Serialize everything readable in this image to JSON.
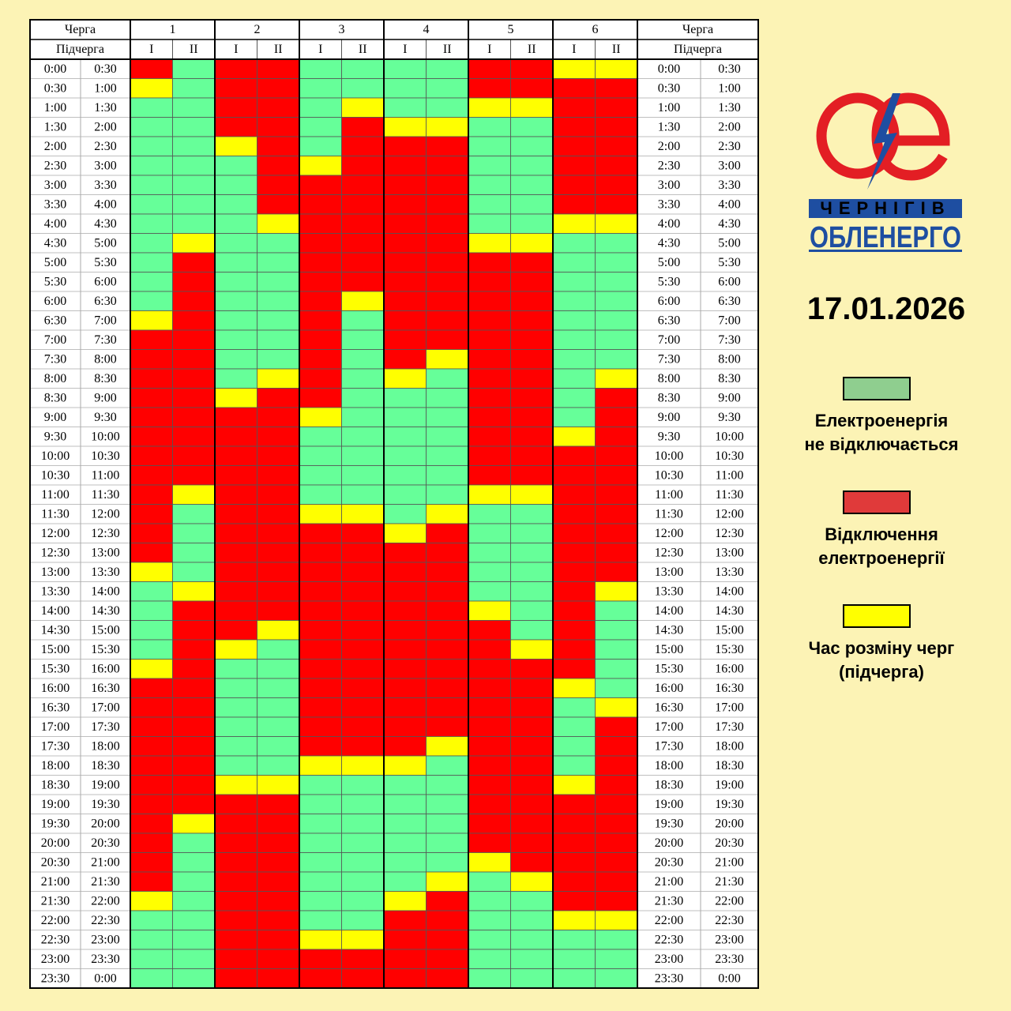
{
  "header": {
    "queue_label": "Черга",
    "subqueue_label": "Підчерга",
    "queues": [
      "1",
      "2",
      "3",
      "4",
      "5",
      "6"
    ],
    "subqueues": [
      "I",
      "II"
    ]
  },
  "logo": {
    "line1": "ЧЕРНІГІВ",
    "line2": "ОБЛЕНЕРГО"
  },
  "date": "17.01.2026",
  "legend": [
    {
      "color": "#8fce8f",
      "label": [
        "Електроенергія",
        "не відключається"
      ]
    },
    {
      "color": "#e03a3a",
      "label": [
        "Відключення",
        "електроенергії"
      ]
    },
    {
      "color": "#ffff00",
      "label": [
        "Час розміну черг",
        "(підчерга)"
      ]
    }
  ],
  "rows": [
    {
      "from": "0:00",
      "to": "0:30",
      "cells": [
        "#f00",
        "#6f9",
        "#f00",
        "#f00",
        "#6f9",
        "#6f9",
        "#6f9",
        "#6f9",
        "#f00",
        "#f00",
        "#ff0",
        "#ff0"
      ]
    },
    {
      "from": "0:30",
      "to": "1:00",
      "cells": [
        "#ff0",
        "#6f9",
        "#f00",
        "#f00",
        "#6f9",
        "#6f9",
        "#6f9",
        "#6f9",
        "#f00",
        "#f00",
        "#f00",
        "#f00"
      ]
    },
    {
      "from": "1:00",
      "to": "1:30",
      "cells": [
        "#6f9",
        "#6f9",
        "#f00",
        "#f00",
        "#6f9",
        "#ff0",
        "#6f9",
        "#6f9",
        "#ff0",
        "#ff0",
        "#f00",
        "#f00"
      ]
    },
    {
      "from": "1:30",
      "to": "2:00",
      "cells": [
        "#6f9",
        "#6f9",
        "#f00",
        "#f00",
        "#6f9",
        "#f00",
        "#ff0",
        "#ff0",
        "#6f9",
        "#6f9",
        "#f00",
        "#f00"
      ]
    },
    {
      "from": "2:00",
      "to": "2:30",
      "cells": [
        "#6f9",
        "#6f9",
        "#ff0",
        "#f00",
        "#6f9",
        "#f00",
        "#f00",
        "#f00",
        "#6f9",
        "#6f9",
        "#f00",
        "#f00"
      ]
    },
    {
      "from": "2:30",
      "to": "3:00",
      "cells": [
        "#6f9",
        "#6f9",
        "#6f9",
        "#f00",
        "#ff0",
        "#f00",
        "#f00",
        "#f00",
        "#6f9",
        "#6f9",
        "#f00",
        "#f00"
      ]
    },
    {
      "from": "3:00",
      "to": "3:30",
      "cells": [
        "#6f9",
        "#6f9",
        "#6f9",
        "#f00",
        "#f00",
        "#f00",
        "#f00",
        "#f00",
        "#6f9",
        "#6f9",
        "#f00",
        "#f00"
      ]
    },
    {
      "from": "3:30",
      "to": "4:00",
      "cells": [
        "#6f9",
        "#6f9",
        "#6f9",
        "#f00",
        "#f00",
        "#f00",
        "#f00",
        "#f00",
        "#6f9",
        "#6f9",
        "#f00",
        "#f00"
      ]
    },
    {
      "from": "4:00",
      "to": "4:30",
      "cells": [
        "#6f9",
        "#6f9",
        "#6f9",
        "#ff0",
        "#f00",
        "#f00",
        "#f00",
        "#f00",
        "#6f9",
        "#6f9",
        "#ff0",
        "#ff0"
      ]
    },
    {
      "from": "4:30",
      "to": "5:00",
      "cells": [
        "#6f9",
        "#ff0",
        "#6f9",
        "#6f9",
        "#f00",
        "#f00",
        "#f00",
        "#f00",
        "#ff0",
        "#ff0",
        "#6f9",
        "#6f9"
      ]
    },
    {
      "from": "5:00",
      "to": "5:30",
      "cells": [
        "#6f9",
        "#f00",
        "#6f9",
        "#6f9",
        "#f00",
        "#f00",
        "#f00",
        "#f00",
        "#f00",
        "#f00",
        "#6f9",
        "#6f9"
      ]
    },
    {
      "from": "5:30",
      "to": "6:00",
      "cells": [
        "#6f9",
        "#f00",
        "#6f9",
        "#6f9",
        "#f00",
        "#f00",
        "#f00",
        "#f00",
        "#f00",
        "#f00",
        "#6f9",
        "#6f9"
      ]
    },
    {
      "from": "6:00",
      "to": "6:30",
      "cells": [
        "#6f9",
        "#f00",
        "#6f9",
        "#6f9",
        "#f00",
        "#ff0",
        "#f00",
        "#f00",
        "#f00",
        "#f00",
        "#6f9",
        "#6f9"
      ]
    },
    {
      "from": "6:30",
      "to": "7:00",
      "cells": [
        "#ff0",
        "#f00",
        "#6f9",
        "#6f9",
        "#f00",
        "#6f9",
        "#f00",
        "#f00",
        "#f00",
        "#f00",
        "#6f9",
        "#6f9"
      ]
    },
    {
      "from": "7:00",
      "to": "7:30",
      "cells": [
        "#f00",
        "#f00",
        "#6f9",
        "#6f9",
        "#f00",
        "#6f9",
        "#f00",
        "#f00",
        "#f00",
        "#f00",
        "#6f9",
        "#6f9"
      ]
    },
    {
      "from": "7:30",
      "to": "8:00",
      "cells": [
        "#f00",
        "#f00",
        "#6f9",
        "#6f9",
        "#f00",
        "#6f9",
        "#f00",
        "#ff0",
        "#f00",
        "#f00",
        "#6f9",
        "#6f9"
      ]
    },
    {
      "from": "8:00",
      "to": "8:30",
      "cells": [
        "#f00",
        "#f00",
        "#6f9",
        "#ff0",
        "#f00",
        "#6f9",
        "#ff0",
        "#6f9",
        "#f00",
        "#f00",
        "#6f9",
        "#ff0"
      ]
    },
    {
      "from": "8:30",
      "to": "9:00",
      "cells": [
        "#f00",
        "#f00",
        "#ff0",
        "#f00",
        "#f00",
        "#6f9",
        "#6f9",
        "#6f9",
        "#f00",
        "#f00",
        "#6f9",
        "#f00"
      ]
    },
    {
      "from": "9:00",
      "to": "9:30",
      "cells": [
        "#f00",
        "#f00",
        "#f00",
        "#f00",
        "#ff0",
        "#6f9",
        "#6f9",
        "#6f9",
        "#f00",
        "#f00",
        "#6f9",
        "#f00"
      ]
    },
    {
      "from": "9:30",
      "to": "10:00",
      "cells": [
        "#f00",
        "#f00",
        "#f00",
        "#f00",
        "#6f9",
        "#6f9",
        "#6f9",
        "#6f9",
        "#f00",
        "#f00",
        "#ff0",
        "#f00"
      ]
    },
    {
      "from": "10:00",
      "to": "10:30",
      "cells": [
        "#f00",
        "#f00",
        "#f00",
        "#f00",
        "#6f9",
        "#6f9",
        "#6f9",
        "#6f9",
        "#f00",
        "#f00",
        "#f00",
        "#f00"
      ]
    },
    {
      "from": "10:30",
      "to": "11:00",
      "cells": [
        "#f00",
        "#f00",
        "#f00",
        "#f00",
        "#6f9",
        "#6f9",
        "#6f9",
        "#6f9",
        "#f00",
        "#f00",
        "#f00",
        "#f00"
      ]
    },
    {
      "from": "11:00",
      "to": "11:30",
      "cells": [
        "#f00",
        "#ff0",
        "#f00",
        "#f00",
        "#6f9",
        "#6f9",
        "#6f9",
        "#6f9",
        "#ff0",
        "#ff0",
        "#f00",
        "#f00"
      ]
    },
    {
      "from": "11:30",
      "to": "12:00",
      "cells": [
        "#f00",
        "#6f9",
        "#f00",
        "#f00",
        "#ff0",
        "#ff0",
        "#6f9",
        "#ff0",
        "#6f9",
        "#6f9",
        "#f00",
        "#f00"
      ]
    },
    {
      "from": "12:00",
      "to": "12:30",
      "cells": [
        "#f00",
        "#6f9",
        "#f00",
        "#f00",
        "#f00",
        "#f00",
        "#ff0",
        "#f00",
        "#6f9",
        "#6f9",
        "#f00",
        "#f00"
      ]
    },
    {
      "from": "12:30",
      "to": "13:00",
      "cells": [
        "#f00",
        "#6f9",
        "#f00",
        "#f00",
        "#f00",
        "#f00",
        "#f00",
        "#f00",
        "#6f9",
        "#6f9",
        "#f00",
        "#f00"
      ]
    },
    {
      "from": "13:00",
      "to": "13:30",
      "cells": [
        "#ff0",
        "#6f9",
        "#f00",
        "#f00",
        "#f00",
        "#f00",
        "#f00",
        "#f00",
        "#6f9",
        "#6f9",
        "#f00",
        "#f00"
      ]
    },
    {
      "from": "13:30",
      "to": "14:00",
      "cells": [
        "#6f9",
        "#ff0",
        "#f00",
        "#f00",
        "#f00",
        "#f00",
        "#f00",
        "#f00",
        "#6f9",
        "#6f9",
        "#f00",
        "#ff0"
      ]
    },
    {
      "from": "14:00",
      "to": "14:30",
      "cells": [
        "#6f9",
        "#f00",
        "#f00",
        "#f00",
        "#f00",
        "#f00",
        "#f00",
        "#f00",
        "#ff0",
        "#6f9",
        "#f00",
        "#6f9"
      ]
    },
    {
      "from": "14:30",
      "to": "15:00",
      "cells": [
        "#6f9",
        "#f00",
        "#f00",
        "#ff0",
        "#f00",
        "#f00",
        "#f00",
        "#f00",
        "#f00",
        "#6f9",
        "#f00",
        "#6f9"
      ]
    },
    {
      "from": "15:00",
      "to": "15:30",
      "cells": [
        "#6f9",
        "#f00",
        "#ff0",
        "#6f9",
        "#f00",
        "#f00",
        "#f00",
        "#f00",
        "#f00",
        "#ff0",
        "#f00",
        "#6f9"
      ]
    },
    {
      "from": "15:30",
      "to": "16:00",
      "cells": [
        "#ff0",
        "#f00",
        "#6f9",
        "#6f9",
        "#f00",
        "#f00",
        "#f00",
        "#f00",
        "#f00",
        "#f00",
        "#f00",
        "#6f9"
      ]
    },
    {
      "from": "16:00",
      "to": "16:30",
      "cells": [
        "#f00",
        "#f00",
        "#6f9",
        "#6f9",
        "#f00",
        "#f00",
        "#f00",
        "#f00",
        "#f00",
        "#f00",
        "#ff0",
        "#6f9"
      ]
    },
    {
      "from": "16:30",
      "to": "17:00",
      "cells": [
        "#f00",
        "#f00",
        "#6f9",
        "#6f9",
        "#f00",
        "#f00",
        "#f00",
        "#f00",
        "#f00",
        "#f00",
        "#6f9",
        "#ff0"
      ]
    },
    {
      "from": "17:00",
      "to": "17:30",
      "cells": [
        "#f00",
        "#f00",
        "#6f9",
        "#6f9",
        "#f00",
        "#f00",
        "#f00",
        "#f00",
        "#f00",
        "#f00",
        "#6f9",
        "#f00"
      ]
    },
    {
      "from": "17:30",
      "to": "18:00",
      "cells": [
        "#f00",
        "#f00",
        "#6f9",
        "#6f9",
        "#f00",
        "#f00",
        "#f00",
        "#ff0",
        "#f00",
        "#f00",
        "#6f9",
        "#f00"
      ]
    },
    {
      "from": "18:00",
      "to": "18:30",
      "cells": [
        "#f00",
        "#f00",
        "#6f9",
        "#6f9",
        "#ff0",
        "#ff0",
        "#ff0",
        "#6f9",
        "#f00",
        "#f00",
        "#6f9",
        "#f00"
      ]
    },
    {
      "from": "18:30",
      "to": "19:00",
      "cells": [
        "#f00",
        "#f00",
        "#ff0",
        "#ff0",
        "#6f9",
        "#6f9",
        "#6f9",
        "#6f9",
        "#f00",
        "#f00",
        "#ff0",
        "#f00"
      ]
    },
    {
      "from": "19:00",
      "to": "19:30",
      "cells": [
        "#f00",
        "#f00",
        "#f00",
        "#f00",
        "#6f9",
        "#6f9",
        "#6f9",
        "#6f9",
        "#f00",
        "#f00",
        "#f00",
        "#f00"
      ]
    },
    {
      "from": "19:30",
      "to": "20:00",
      "cells": [
        "#f00",
        "#ff0",
        "#f00",
        "#f00",
        "#6f9",
        "#6f9",
        "#6f9",
        "#6f9",
        "#f00",
        "#f00",
        "#f00",
        "#f00"
      ]
    },
    {
      "from": "20:00",
      "to": "20:30",
      "cells": [
        "#f00",
        "#6f9",
        "#f00",
        "#f00",
        "#6f9",
        "#6f9",
        "#6f9",
        "#6f9",
        "#f00",
        "#f00",
        "#f00",
        "#f00"
      ]
    },
    {
      "from": "20:30",
      "to": "21:00",
      "cells": [
        "#f00",
        "#6f9",
        "#f00",
        "#f00",
        "#6f9",
        "#6f9",
        "#6f9",
        "#6f9",
        "#ff0",
        "#f00",
        "#f00",
        "#f00"
      ]
    },
    {
      "from": "21:00",
      "to": "21:30",
      "cells": [
        "#f00",
        "#6f9",
        "#f00",
        "#f00",
        "#6f9",
        "#6f9",
        "#6f9",
        "#ff0",
        "#6f9",
        "#ff0",
        "#f00",
        "#f00"
      ]
    },
    {
      "from": "21:30",
      "to": "22:00",
      "cells": [
        "#ff0",
        "#6f9",
        "#f00",
        "#f00",
        "#6f9",
        "#6f9",
        "#ff0",
        "#f00",
        "#6f9",
        "#6f9",
        "#f00",
        "#f00"
      ]
    },
    {
      "from": "22:00",
      "to": "22:30",
      "cells": [
        "#6f9",
        "#6f9",
        "#f00",
        "#f00",
        "#6f9",
        "#6f9",
        "#f00",
        "#f00",
        "#6f9",
        "#6f9",
        "#ff0",
        "#ff0"
      ]
    },
    {
      "from": "22:30",
      "to": "23:00",
      "cells": [
        "#6f9",
        "#6f9",
        "#f00",
        "#f00",
        "#ff0",
        "#ff0",
        "#f00",
        "#f00",
        "#6f9",
        "#6f9",
        "#6f9",
        "#6f9"
      ]
    },
    {
      "from": "23:00",
      "to": "23:30",
      "cells": [
        "#6f9",
        "#6f9",
        "#f00",
        "#f00",
        "#f00",
        "#f00",
        "#f00",
        "#f00",
        "#6f9",
        "#6f9",
        "#6f9",
        "#6f9"
      ]
    },
    {
      "from": "23:30",
      "to": "0:00",
      "cells": [
        "#6f9",
        "#6f9",
        "#f00",
        "#f00",
        "#f00",
        "#f00",
        "#f00",
        "#f00",
        "#6f9",
        "#6f9",
        "#6f9",
        "#6f9"
      ]
    }
  ]
}
